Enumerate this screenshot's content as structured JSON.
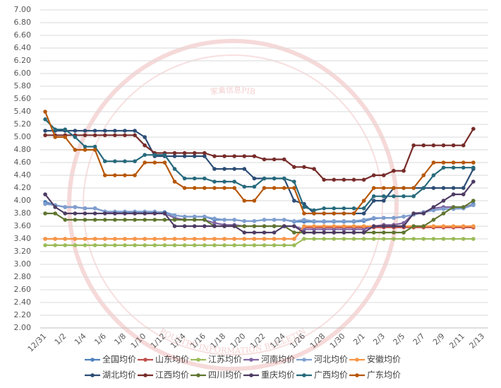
{
  "chart_data": {
    "type": "line",
    "categories": [
      "12/31",
      null,
      "1/2",
      null,
      "1/4",
      null,
      "1/6",
      null,
      "1/8",
      null,
      "1/10",
      null,
      "1/12",
      null,
      "1/14",
      null,
      "1/16",
      null,
      "1/18",
      null,
      "1/20",
      null,
      "1/22",
      null,
      "1/24",
      null,
      "1/26",
      null,
      "1/28",
      null,
      "1/30",
      null,
      "2/1",
      null,
      "2/3",
      null,
      "2/5",
      null,
      "2/7",
      null,
      "2/9",
      null,
      "2/11",
      null,
      "2/13"
    ],
    "ylim": [
      2,
      7
    ],
    "yticks": [
      {
        "value": 2,
        "label": "2.00"
      },
      {
        "value": 2.2,
        "label": "2.20"
      },
      {
        "value": 2.4,
        "label": "2.40"
      },
      {
        "value": 2.6,
        "label": "2.60"
      },
      {
        "value": 2.8,
        "label": "2.80"
      },
      {
        "value": 3,
        "label": "3.00"
      },
      {
        "value": 3.2,
        "label": "3.20"
      },
      {
        "value": 3.4,
        "label": "3.40"
      },
      {
        "value": 3.6,
        "label": "3.60"
      },
      {
        "value": 3.8,
        "label": "3.80"
      },
      {
        "value": 4,
        "label": "4.00"
      },
      {
        "value": 4.2,
        "label": "4.20"
      },
      {
        "value": 4.4,
        "label": "4.40"
      },
      {
        "value": 4.6,
        "label": "4.60"
      },
      {
        "value": 4.8,
        "label": "4.80"
      },
      {
        "value": 5,
        "label": "5.00"
      },
      {
        "value": 5.2,
        "label": "5.20"
      },
      {
        "value": 5.4,
        "label": "5.40"
      },
      {
        "value": 5.6,
        "label": "5.60"
      },
      {
        "value": 5.8,
        "label": "5.80"
      },
      {
        "value": 6,
        "label": "6.00"
      },
      {
        "value": 6.2,
        "label": "6.20"
      },
      {
        "value": 6.4,
        "label": "6.40"
      },
      {
        "value": 6.6,
        "label": "6.60"
      },
      {
        "value": 6.8,
        "label": "6.80"
      },
      {
        "value": 7,
        "label": "7.00"
      }
    ],
    "grid": true,
    "legend": "bottom",
    "series": [
      {
        "name": "全国均价",
        "color": "#4f81bd",
        "values": [
          3.98,
          3.93,
          3.9,
          3.9,
          3.88,
          3.88,
          3.83,
          3.82,
          3.82,
          3.82,
          3.82,
          3.82,
          3.82,
          3.77,
          3.75,
          3.75,
          3.75,
          3.7,
          3.7,
          3.7,
          3.68,
          3.68,
          3.7,
          3.7,
          3.7,
          3.67,
          3.67,
          3.67,
          3.67,
          3.67,
          3.67,
          3.67,
          3.68,
          3.72,
          3.73,
          3.73,
          3.75,
          3.78,
          3.82,
          3.85,
          3.87,
          3.87,
          3.88,
          3.95,
          null
        ]
      },
      {
        "name": "山东均价",
        "color": "#c0504d",
        "values": [
          3.4,
          3.4,
          3.4,
          3.4,
          3.4,
          3.4,
          3.4,
          3.4,
          3.4,
          3.4,
          3.4,
          3.4,
          3.4,
          3.4,
          3.4,
          3.4,
          3.4,
          3.4,
          3.4,
          3.4,
          3.4,
          3.4,
          3.4,
          3.4,
          3.4,
          3.4,
          3.58,
          3.58,
          3.58,
          3.58,
          3.58,
          3.58,
          3.58,
          3.58,
          3.58,
          3.58,
          3.58,
          3.58,
          3.58,
          3.58,
          3.58,
          3.58,
          3.58,
          3.58,
          null
        ]
      },
      {
        "name": "江苏均价",
        "color": "#9bbb59",
        "values": [
          3.3,
          3.3,
          3.3,
          3.3,
          3.3,
          3.3,
          3.3,
          3.3,
          3.3,
          3.3,
          3.3,
          3.3,
          3.3,
          3.3,
          3.3,
          3.3,
          3.3,
          3.3,
          3.3,
          3.3,
          3.3,
          3.3,
          3.3,
          3.3,
          3.3,
          3.3,
          3.4,
          3.4,
          3.4,
          3.4,
          3.4,
          3.4,
          3.4,
          3.4,
          3.4,
          3.4,
          3.4,
          3.4,
          3.4,
          3.4,
          3.4,
          3.4,
          3.4,
          3.4,
          null
        ]
      },
      {
        "name": "河南均价",
        "color": "#8064a2",
        "values": [
          3.95,
          3.93,
          3.9,
          3.9,
          3.88,
          3.88,
          3.83,
          3.8,
          3.8,
          3.8,
          3.8,
          3.8,
          3.8,
          3.73,
          3.7,
          3.7,
          3.7,
          3.65,
          3.62,
          3.62,
          3.6,
          3.6,
          3.6,
          3.6,
          3.6,
          3.6,
          3.55,
          3.55,
          3.55,
          3.55,
          3.55,
          3.55,
          3.55,
          3.6,
          3.62,
          3.62,
          3.65,
          3.8,
          3.82,
          3.88,
          3.9,
          3.9,
          3.9,
          3.93,
          null
        ]
      },
      {
        "name": "河北均价",
        "color": "#7f9fcf",
        "values": [
          3.95,
          3.93,
          3.9,
          3.9,
          3.88,
          3.88,
          3.83,
          3.83,
          3.83,
          3.83,
          3.83,
          3.83,
          3.8,
          3.77,
          3.75,
          3.75,
          3.75,
          3.72,
          3.7,
          3.7,
          3.68,
          3.68,
          3.7,
          3.7,
          3.7,
          3.68,
          3.7,
          3.68,
          3.68,
          3.68,
          3.68,
          3.68,
          3.7,
          3.73,
          3.73,
          3.73,
          3.75,
          3.78,
          3.82,
          3.85,
          3.87,
          3.87,
          3.88,
          3.93,
          null
        ]
      },
      {
        "name": "安徽均价",
        "color": "#f79646",
        "values": [
          3.4,
          3.4,
          3.4,
          3.4,
          3.4,
          3.4,
          3.4,
          3.4,
          3.4,
          3.4,
          3.4,
          3.4,
          3.4,
          3.4,
          3.4,
          3.4,
          3.4,
          3.4,
          3.4,
          3.4,
          3.4,
          3.4,
          3.4,
          3.4,
          3.4,
          3.4,
          3.6,
          3.6,
          3.6,
          3.6,
          3.6,
          3.6,
          3.6,
          3.6,
          3.6,
          3.6,
          3.6,
          3.6,
          3.6,
          3.6,
          3.6,
          3.6,
          3.6,
          3.6,
          null
        ]
      },
      {
        "name": "湖北均价",
        "color": "#2c4d75",
        "values": [
          5.1,
          5.1,
          5.1,
          5.1,
          5.1,
          5.1,
          5.1,
          5.1,
          5.1,
          5.1,
          5.0,
          4.7,
          4.7,
          4.7,
          4.7,
          4.7,
          4.7,
          4.5,
          4.5,
          4.5,
          4.5,
          4.35,
          4.35,
          4.35,
          4.35,
          4.0,
          3.95,
          3.8,
          3.8,
          3.8,
          3.8,
          3.8,
          3.8,
          4.0,
          4.0,
          4.2,
          4.2,
          4.2,
          4.2,
          4.2,
          4.2,
          4.2,
          4.2,
          4.5,
          null
        ]
      },
      {
        "name": "江西均价",
        "color": "#772c2a",
        "values": [
          5.03,
          5.03,
          5.03,
          5.03,
          5.03,
          5.03,
          5.03,
          5.03,
          5.03,
          5.03,
          4.87,
          4.75,
          4.75,
          4.75,
          4.75,
          4.75,
          4.75,
          4.7,
          4.7,
          4.7,
          4.7,
          4.7,
          4.65,
          4.65,
          4.65,
          4.53,
          4.53,
          4.5,
          4.33,
          4.33,
          4.33,
          4.33,
          4.33,
          4.4,
          4.4,
          4.47,
          4.47,
          4.87,
          4.87,
          4.87,
          4.87,
          4.87,
          4.87,
          5.13,
          null
        ]
      },
      {
        "name": "四川均价",
        "color": "#5f7530",
        "values": [
          3.8,
          3.8,
          3.7,
          3.7,
          3.7,
          3.7,
          3.7,
          3.7,
          3.7,
          3.7,
          3.7,
          3.7,
          3.7,
          3.7,
          3.7,
          3.7,
          3.7,
          3.6,
          3.6,
          3.6,
          3.6,
          3.6,
          3.6,
          3.6,
          3.6,
          3.5,
          3.5,
          3.5,
          3.5,
          3.5,
          3.5,
          3.5,
          3.5,
          3.5,
          3.5,
          3.5,
          3.5,
          3.6,
          3.6,
          3.7,
          3.8,
          3.9,
          3.9,
          4.0,
          null
        ]
      },
      {
        "name": "重庆均价",
        "color": "#4d3b62",
        "values": [
          4.1,
          3.9,
          3.8,
          3.8,
          3.8,
          3.8,
          3.8,
          3.8,
          3.8,
          3.8,
          3.8,
          3.8,
          3.8,
          3.6,
          3.6,
          3.6,
          3.6,
          3.6,
          3.6,
          3.6,
          3.5,
          3.5,
          3.5,
          3.5,
          3.6,
          3.6,
          3.5,
          3.5,
          3.5,
          3.5,
          3.5,
          3.5,
          3.5,
          3.6,
          3.6,
          3.6,
          3.6,
          3.8,
          3.8,
          3.9,
          4.0,
          4.1,
          4.1,
          4.3,
          null
        ]
      },
      {
        "name": "广西均价",
        "color": "#276a7c",
        "values": [
          5.28,
          5.12,
          5.12,
          5.0,
          4.85,
          4.85,
          4.62,
          4.62,
          4.62,
          4.62,
          4.72,
          4.72,
          4.72,
          4.5,
          4.35,
          4.35,
          4.35,
          4.3,
          4.3,
          4.3,
          4.22,
          4.22,
          4.35,
          4.35,
          4.35,
          4.3,
          3.9,
          3.85,
          3.88,
          3.88,
          3.88,
          3.88,
          3.88,
          4.07,
          4.07,
          4.07,
          4.07,
          4.07,
          4.2,
          4.4,
          4.52,
          4.52,
          4.52,
          4.52,
          null
        ]
      },
      {
        "name": "广东均价",
        "color": "#b65708",
        "values": [
          5.4,
          5.0,
          5.0,
          4.8,
          4.8,
          4.8,
          4.4,
          4.4,
          4.4,
          4.4,
          4.6,
          4.6,
          4.6,
          4.3,
          4.2,
          4.2,
          4.2,
          4.2,
          4.2,
          4.2,
          4.0,
          4.0,
          4.2,
          4.2,
          4.2,
          4.2,
          3.8,
          3.8,
          3.8,
          3.8,
          3.8,
          3.8,
          4.0,
          4.2,
          4.2,
          4.2,
          4.2,
          4.2,
          4.4,
          4.6,
          4.6,
          4.6,
          4.6,
          4.6,
          null
        ]
      }
    ]
  },
  "watermark": {
    "top": "家禽信息PIB",
    "bottom": "POULTRY INFORMATION BULLETIN"
  }
}
